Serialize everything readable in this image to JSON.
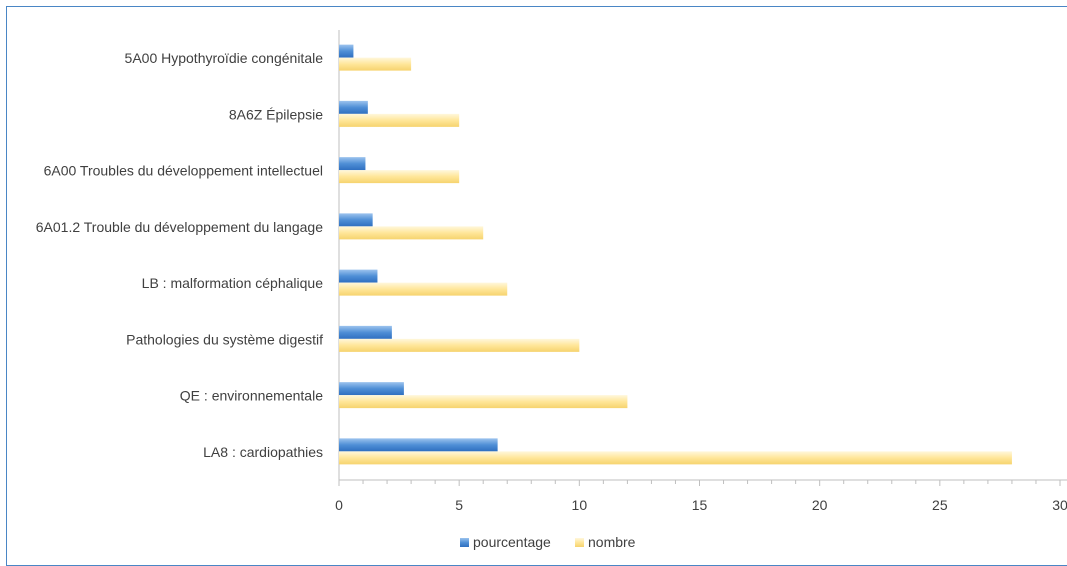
{
  "chart_data": {
    "type": "bar",
    "orientation": "horizontal",
    "categories": [
      "LA8 : cardiopathies",
      "QE : environnementale",
      "Pathologies du système digestif",
      "LB : malformation céphalique",
      "6A01.2 Trouble du développement du langage",
      "6A00 Troubles du développement intellectuel",
      "8A6Z Épilepsie",
      "5A00 Hypothyroïdie congénitale"
    ],
    "series": [
      {
        "name": "pourcentage",
        "color": "#4f8fd6",
        "values": [
          6.6,
          2.7,
          2.2,
          1.6,
          1.4,
          1.1,
          1.2,
          0.6
        ]
      },
      {
        "name": "nombre",
        "color": "#ffe699",
        "values": [
          28,
          12,
          10,
          7,
          6,
          5,
          5,
          3
        ]
      }
    ],
    "xlim": [
      0,
      30
    ],
    "xticks": [
      "0",
      "5",
      "10",
      "15",
      "20",
      "25",
      "30"
    ],
    "legend": "bottom",
    "grid": false
  }
}
